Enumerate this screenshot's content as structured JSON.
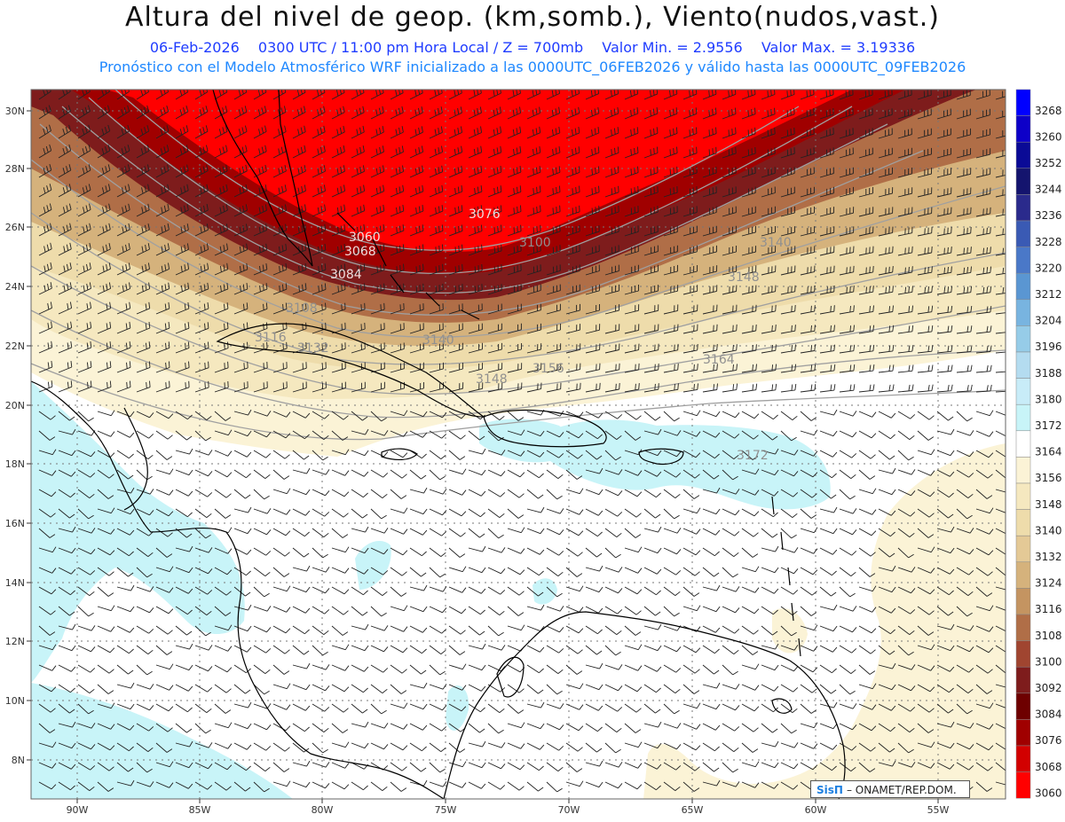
{
  "title": "Altura del nivel de geop. (km,somb.), Viento(nudos,vast.)",
  "subtitle": {
    "date": "06-Feb-2026",
    "time": "0300 UTC / 11:00 pm Hora Local / Z = 700mb",
    "min": "Valor Min. = 2.9556",
    "max": "Valor Max. = 3.19336"
  },
  "subtitle2": "Pronóstico con el Modelo Atmosférico WRF inicializado a las 0000UTC_06FEB2026 y válido hasta las  0000UTC_09FEB2026",
  "credit": {
    "logo": "SisΠ",
    "text": "– ONAMET/REP.DOM."
  },
  "lat_labels": [
    "30N",
    "28N",
    "26N",
    "24N",
    "22N",
    "20N",
    "18N",
    "16N",
    "14N",
    "12N",
    "10N",
    "8N"
  ],
  "lon_labels": [
    "90W",
    "85W",
    "80W",
    "75W",
    "70W",
    "65W",
    "60W",
    "55W"
  ],
  "contour_labels": [
    "3060",
    "3068",
    "3076",
    "3084",
    "3100",
    "3108",
    "3116",
    "3132",
    "3140",
    "3140",
    "3148",
    "3148",
    "3156",
    "3164",
    "3172"
  ],
  "colorbar": {
    "levels": [
      "3268",
      "3260",
      "3252",
      "3244",
      "3236",
      "3228",
      "3220",
      "3212",
      "3204",
      "3196",
      "3188",
      "3180",
      "3172",
      "3164",
      "3156",
      "3148",
      "3140",
      "3132",
      "3124",
      "3116",
      "3108",
      "3100",
      "3092",
      "3084",
      "3076",
      "3068",
      "3060"
    ],
    "colors": [
      "#0000ff",
      "#0d00c8",
      "#0a0a96",
      "#14146e",
      "#2a2a8c",
      "#3a5ab4",
      "#4a78c8",
      "#5a96d2",
      "#78b4e0",
      "#96cce8",
      "#b4dcf0",
      "#c8ecf8",
      "#c8f4f8",
      "#ffffff",
      "#fbf3d6",
      "#f5e8bf",
      "#eedcab",
      "#e4c996",
      "#d5b27c",
      "#c49461",
      "#b06e47",
      "#a04530",
      "#7e1c1c",
      "#6e0000",
      "#a00000",
      "#d20000",
      "#ff0000"
    ]
  },
  "colors": {
    "land_outline": "#000000",
    "grid": "#777777",
    "contour": "#909090"
  }
}
